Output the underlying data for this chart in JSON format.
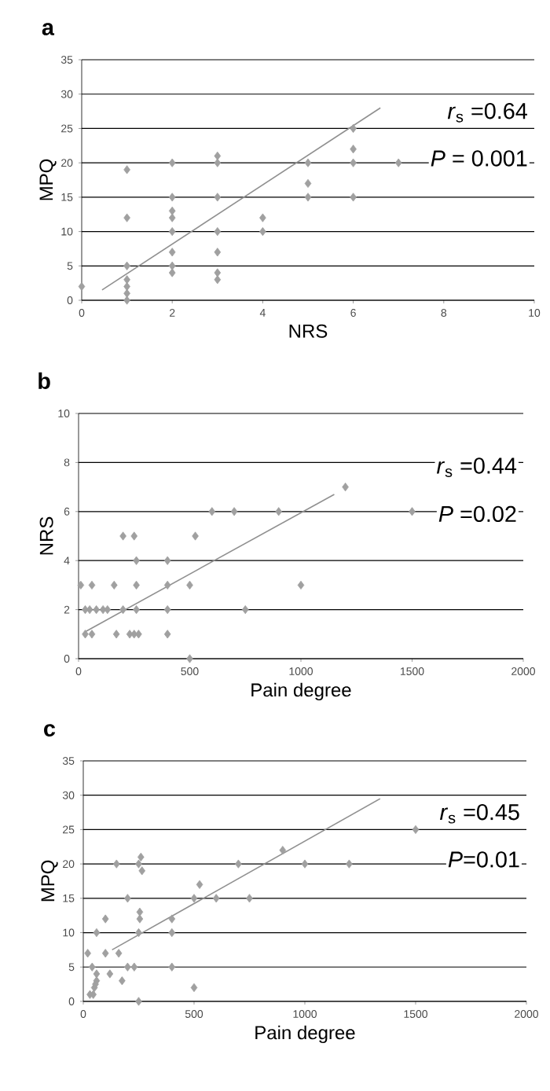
{
  "chart_data": [
    {
      "type": "scatter",
      "title": "a",
      "xlabel": "NRS",
      "ylabel": "MPQ",
      "xlim": [
        0,
        10
      ],
      "ylim": [
        0,
        35
      ],
      "xticks": [
        0,
        2,
        4,
        6,
        8,
        10
      ],
      "yticks": [
        0,
        5,
        10,
        15,
        20,
        25,
        30,
        35
      ],
      "grid": "y",
      "series": [
        {
          "marker": "diamond",
          "color": "#a0a0a0",
          "x": [
            0,
            1,
            1,
            1,
            1,
            1,
            1,
            1,
            2,
            2,
            2,
            2,
            2,
            2,
            2,
            2,
            3,
            3,
            3,
            3,
            3,
            3,
            3,
            4,
            4,
            5,
            5,
            5,
            6,
            6,
            6,
            6,
            7
          ],
          "values": [
            2,
            19,
            12,
            5,
            3,
            2,
            1,
            0,
            20,
            15,
            13,
            12,
            10,
            7,
            5,
            4,
            21,
            20,
            15,
            10,
            7,
            4,
            3,
            12,
            10,
            20,
            17,
            15,
            25,
            22,
            20,
            15,
            20
          ]
        },
        {
          "type": "line",
          "color": "#909090",
          "x": [
            0.45,
            6.6
          ],
          "values": [
            1.5,
            28
          ]
        }
      ],
      "annotations": [
        "*r*$_{s}$ =0.64",
        "*P* = 0.001"
      ]
    },
    {
      "type": "scatter",
      "title": "b",
      "xlabel": "Pain degree",
      "ylabel": "NRS",
      "xlim": [
        0,
        2000
      ],
      "ylim": [
        0,
        10
      ],
      "xticks": [
        0,
        500,
        1000,
        1500,
        2000
      ],
      "yticks": [
        0,
        2,
        4,
        6,
        8,
        10
      ],
      "grid": "y",
      "series": [
        {
          "marker": "diamond",
          "color": "#a0a0a0",
          "x": [
            1200,
            600,
            700,
            900,
            1500,
            200,
            250,
            525,
            260,
            400,
            10,
            60,
            160,
            260,
            400,
            500,
            1000,
            30,
            50,
            80,
            110,
            130,
            200,
            260,
            400,
            750,
            30,
            60,
            170,
            230,
            250,
            270,
            400,
            500
          ],
          "values": [
            7,
            6,
            6,
            6,
            6,
            5,
            5,
            5,
            4,
            4,
            3,
            3,
            3,
            3,
            3,
            3,
            3,
            2,
            2,
            2,
            2,
            2,
            2,
            2,
            2,
            2,
            1,
            1,
            1,
            1,
            1,
            1,
            1,
            0
          ]
        },
        {
          "type": "line",
          "color": "#909090",
          "x": [
            30,
            1150
          ],
          "values": [
            1.1,
            6.7
          ]
        }
      ],
      "annotations": [
        "*r*$_{s}$ =0.44",
        "*P* =0.02"
      ]
    },
    {
      "type": "scatter",
      "title": "c",
      "xlabel": "Pain degree",
      "ylabel": "MPQ",
      "xlim": [
        0,
        2000
      ],
      "ylim": [
        0,
        35
      ],
      "xticks": [
        0,
        500,
        1000,
        1500,
        2000
      ],
      "yticks": [
        0,
        5,
        10,
        15,
        20,
        25,
        30,
        35
      ],
      "grid": "y",
      "series": [
        {
          "marker": "diamond",
          "color": "#a0a0a0",
          "x": [
            1500,
            900,
            260,
            150,
            250,
            700,
            1000,
            1200,
            265,
            525,
            200,
            500,
            600,
            750,
            255,
            100,
            255,
            400,
            60,
            250,
            400,
            20,
            100,
            160,
            40,
            200,
            230,
            400,
            60,
            120,
            60,
            175,
            50,
            500,
            30,
            250,
            45,
            55
          ],
          "values": [
            25,
            22,
            21,
            20,
            20,
            20,
            20,
            20,
            19,
            17,
            15,
            15,
            15,
            15,
            13,
            12,
            12,
            12,
            10,
            10,
            10,
            7,
            7,
            7,
            5,
            5,
            5,
            5,
            4,
            4,
            3,
            3,
            2,
            2,
            1,
            0,
            1,
            2.5
          ]
        },
        {
          "type": "line",
          "color": "#909090",
          "x": [
            130,
            1340
          ],
          "values": [
            7.5,
            29.5
          ]
        }
      ],
      "annotations": [
        "*r*$_{s}$ =0.45",
        "*P*=0.01"
      ]
    }
  ]
}
